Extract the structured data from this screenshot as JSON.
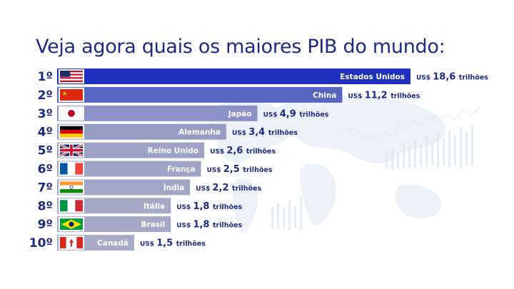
{
  "title": "Veja agora quais os maiores PIB do mundo:",
  "colors": {
    "title": "#1b2a86",
    "text": "#1b2a86",
    "bar_start": "#1f2fc0",
    "bar_end": "#a5abc6",
    "background": "#ffffff"
  },
  "chart_data": {
    "type": "bar",
    "orientation": "horizontal",
    "title": "Veja agora quais os maiores PIB do mundo:",
    "value_unit_prefix": "US$",
    "value_unit_suffix": "trilhões",
    "grid": false,
    "legend": "none",
    "categories": [
      "Estados Unidos",
      "China",
      "Japão",
      "Alemanha",
      "Reino Unido",
      "França",
      "Índia",
      "Itália",
      "Brasil",
      "Canadá"
    ],
    "ranks": [
      "1º",
      "2º",
      "3º",
      "4º",
      "5º",
      "6º",
      "7º",
      "8º",
      "9º",
      "10º"
    ],
    "values": [
      18.6,
      11.2,
      4.9,
      3.4,
      2.6,
      2.5,
      2.2,
      1.8,
      1.8,
      1.5
    ],
    "value_labels": [
      "18,6",
      "11,2",
      "4,9",
      "3,4",
      "2,6",
      "2,5",
      "2,2",
      "1,8",
      "1,8",
      "1,5"
    ],
    "flags": [
      "flag-usa-icon",
      "flag-china-icon",
      "flag-japan-icon",
      "flag-germany-icon",
      "flag-uk-icon",
      "flag-france-icon",
      "flag-india-icon",
      "flag-italy-icon",
      "flag-brazil-icon",
      "flag-canada-icon"
    ]
  }
}
